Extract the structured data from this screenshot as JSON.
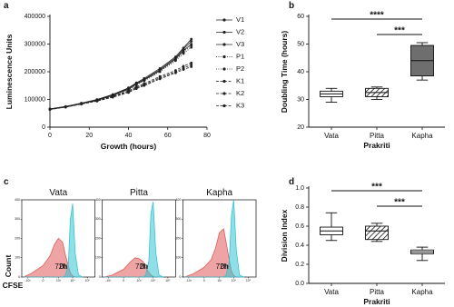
{
  "chart_data": [
    {
      "type": "line",
      "panel": "a",
      "xlabel": "Growth (hours)",
      "ylabel": "Luminescence Units",
      "x": [
        0,
        8,
        16,
        24,
        32,
        40,
        44,
        48,
        56,
        64,
        68,
        72
      ],
      "xlim": [
        0,
        80
      ],
      "xticks": [
        0,
        20,
        40,
        60,
        80
      ],
      "ylim": [
        0,
        400000
      ],
      "yticks": [
        0,
        100000,
        200000,
        300000,
        400000
      ],
      "legend": "right",
      "series": [
        {
          "name": "V1",
          "color": "#222222",
          "line_style": "solid",
          "values": [
            65000,
            74000,
            86000,
            99000,
            117000,
            140000,
            158000,
            172000,
            208000,
            250000,
            282000,
            310000
          ]
        },
        {
          "name": "V2",
          "color": "#222222",
          "line_style": "solid",
          "values": [
            64000,
            73000,
            85000,
            97000,
            115000,
            137000,
            155000,
            170000,
            204000,
            246000,
            276000,
            300000
          ]
        },
        {
          "name": "V3",
          "color": "#222222",
          "line_style": "solid",
          "values": [
            66000,
            75000,
            87000,
            100000,
            118000,
            142000,
            160000,
            176000,
            212000,
            254000,
            286000,
            318000
          ]
        },
        {
          "name": "P1",
          "color": "#222222",
          "line_style": "dotted",
          "values": [
            65000,
            74000,
            85000,
            98000,
            116000,
            138000,
            156000,
            171000,
            205000,
            244000,
            272000,
            295000
          ]
        },
        {
          "name": "P2",
          "color": "#222222",
          "line_style": "dotted",
          "values": [
            64000,
            72000,
            84000,
            96000,
            114000,
            135000,
            152000,
            167000,
            200000,
            240000,
            266000,
            288000
          ]
        },
        {
          "name": "K1",
          "color": "#222222",
          "line_style": "dashed",
          "values": [
            65000,
            73000,
            84000,
            95000,
            110000,
            128000,
            142000,
            153000,
            178000,
            200000,
            213000,
            225000
          ]
        },
        {
          "name": "K2",
          "color": "#222222",
          "line_style": "dashed",
          "values": [
            64000,
            72000,
            83000,
            94000,
            108000,
            125000,
            139000,
            150000,
            174000,
            196000,
            208000,
            218000
          ]
        },
        {
          "name": "K3",
          "color": "#222222",
          "line_style": "dashed",
          "values": [
            66000,
            74000,
            85000,
            96000,
            112000,
            131000,
            146000,
            157000,
            183000,
            205000,
            220000,
            232000
          ]
        }
      ]
    },
    {
      "type": "box",
      "panel": "b",
      "xlabel": "Prakriti",
      "ylabel": "Doubling Time (hours)",
      "categories": [
        "Vata",
        "Pitta",
        "Kapha"
      ],
      "boxes": [
        {
          "min": 29,
          "q1": 31,
          "median": 32,
          "q3": 33,
          "max": 34
        },
        {
          "min": 30,
          "q1": 31,
          "median": 32.5,
          "q3": 34,
          "max": 34.5
        },
        {
          "min": 37,
          "q1": 38.5,
          "median": 44,
          "q3": 49.5,
          "max": 50.5
        }
      ],
      "colors": [
        "#ffffff",
        "#ffffff",
        "#6e6e6e"
      ],
      "hatch": [
        false,
        true,
        false
      ],
      "ylim": [
        20,
        60
      ],
      "yticks": [
        20,
        30,
        40,
        50,
        60
      ],
      "annotations": [
        {
          "label": "****",
          "between": [
            "Vata",
            "Kapha"
          ]
        },
        {
          "label": "***",
          "between": [
            "Pitta",
            "Kapha"
          ]
        }
      ]
    },
    {
      "type": "density",
      "panel": "c",
      "xlabel": "CFSE",
      "ylabel": "Count",
      "xscale": "symlog",
      "x": [
        -2000,
        -500,
        0,
        200,
        500,
        1000,
        2000,
        3000,
        5000,
        7000,
        10000,
        15000,
        25000,
        50000
      ],
      "xlim": [
        -2000,
        250000
      ],
      "xticks": [
        {
          "value": -1000,
          "label": "-10³"
        },
        0,
        {
          "value": 1000,
          "label": "10³"
        },
        {
          "value": 10000,
          "label": "10⁴"
        },
        {
          "value": 100000,
          "label": "10⁵"
        }
      ],
      "ylim": [
        0,
        400
      ],
      "yticks": [
        0,
        100,
        200,
        300,
        400
      ],
      "subplots": [
        {
          "title": "Vata",
          "series": [
            {
              "name": "72h",
              "color": "#e05a5a",
              "values": [
                0,
                20,
                60,
                110,
                170,
                200,
                180,
                120,
                60,
                20,
                5,
                0,
                0,
                0
              ]
            },
            {
              "name": "0h",
              "color": "#35c4d4",
              "values": [
                0,
                0,
                0,
                0,
                0,
                0,
                0,
                5,
                60,
                300,
                380,
                120,
                10,
                0
              ]
            }
          ]
        },
        {
          "title": "Pitta",
          "series": [
            {
              "name": "72h",
              "color": "#e05a5a",
              "values": [
                0,
                10,
                40,
                80,
                100,
                95,
                80,
                50,
                25,
                10,
                3,
                0,
                0,
                0
              ]
            },
            {
              "name": "0h",
              "color": "#35c4d4",
              "values": [
                0,
                0,
                0,
                0,
                0,
                0,
                0,
                10,
                80,
                330,
                390,
                130,
                10,
                0
              ]
            }
          ]
        },
        {
          "title": "Kapha",
          "series": [
            {
              "name": "72h",
              "color": "#e05a5a",
              "values": [
                0,
                15,
                50,
                90,
                150,
                230,
                250,
                180,
                90,
                30,
                8,
                0,
                0,
                0
              ]
            },
            {
              "name": "0h",
              "color": "#35c4d4",
              "values": [
                0,
                0,
                0,
                0,
                0,
                0,
                0,
                10,
                80,
                320,
                400,
                140,
                10,
                0
              ]
            }
          ]
        }
      ]
    },
    {
      "type": "box",
      "panel": "d",
      "xlabel": "Prakriti",
      "ylabel": "Division Index",
      "categories": [
        "Vata",
        "Pitta",
        "Kapha"
      ],
      "boxes": [
        {
          "min": 0.45,
          "q1": 0.51,
          "median": 0.55,
          "q3": 0.59,
          "max": 0.74
        },
        {
          "min": 0.44,
          "q1": 0.46,
          "median": 0.55,
          "q3": 0.6,
          "max": 0.63
        },
        {
          "min": 0.24,
          "q1": 0.31,
          "median": 0.33,
          "q3": 0.35,
          "max": 0.38
        }
      ],
      "colors": [
        "#ffffff",
        "#ffffff",
        "#ffffff"
      ],
      "hatch": [
        false,
        true,
        false
      ],
      "ylim": [
        0,
        1
      ],
      "yticks": [
        {
          "value": 0,
          "label": "0.0"
        },
        0.2,
        0.4,
        0.6,
        0.8,
        {
          "value": 1,
          "label": "1.0"
        }
      ],
      "annotations": [
        {
          "label": "***",
          "between": [
            "Vata",
            "Kapha"
          ]
        },
        {
          "label": "***",
          "between": [
            "Pitta",
            "Kapha"
          ]
        }
      ]
    }
  ]
}
